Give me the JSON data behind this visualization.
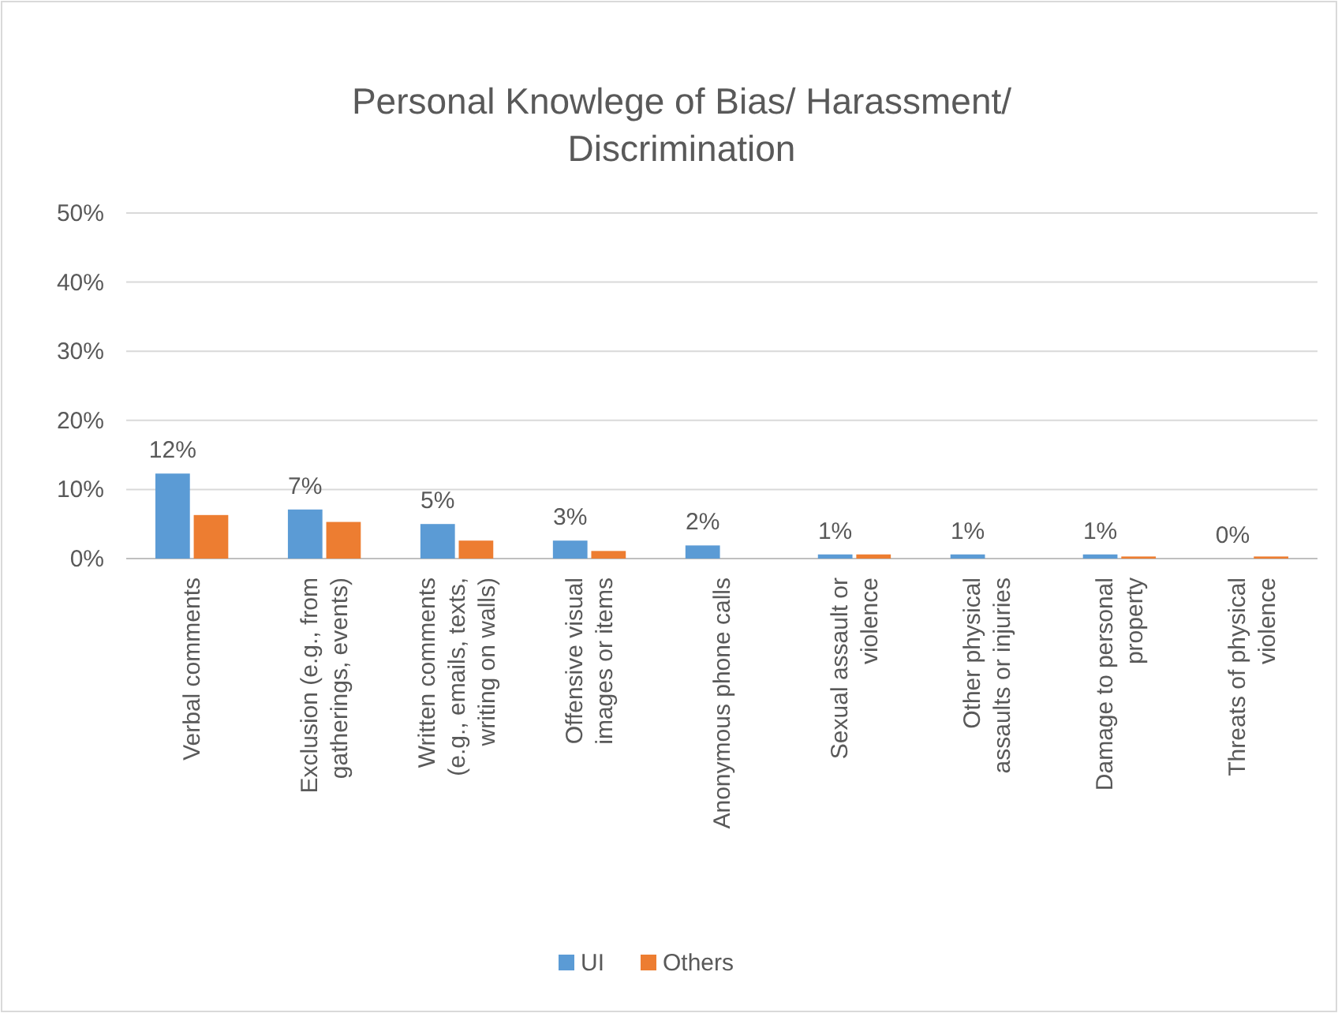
{
  "chart_data": {
    "type": "bar",
    "title": "Personal Knowlege of Bias/ Harassment/ Discrimination",
    "categories": [
      "Verbal comments",
      "Exclusion (e.g., from gatherings, events)",
      "Written comments (e.g., emails, texts, writing on walls)",
      "Offensive visual images or items",
      "Anonymous phone calls",
      "Sexual assault or violence",
      "Other physical assaults or injuries",
      "Damage to personal property",
      "Threats of physical violence"
    ],
    "series": [
      {
        "name": "UI",
        "color": "#5b9bd5",
        "values": [
          12.3,
          7.1,
          5.0,
          2.6,
          1.9,
          0.6,
          0.6,
          0.6,
          0
        ],
        "value_labels": [
          "12%",
          "7%",
          "5%",
          "3%",
          "2%",
          "1%",
          "1%",
          "1%",
          "0%"
        ]
      },
      {
        "name": "Others",
        "color": "#ed7d31",
        "values": [
          6.3,
          5.3,
          2.6,
          1.1,
          0,
          0.6,
          0,
          0.3,
          0.3
        ]
      }
    ],
    "ylim": [
      0,
      50
    ],
    "yticks": [
      {
        "value": 0,
        "label": "0%"
      },
      {
        "value": 10,
        "label": "10%"
      },
      {
        "value": 20,
        "label": "20%"
      },
      {
        "value": 30,
        "label": "30%"
      },
      {
        "value": 40,
        "label": "40%"
      },
      {
        "value": 50,
        "label": "50%"
      }
    ],
    "grid": "y",
    "legend": "bottom"
  }
}
